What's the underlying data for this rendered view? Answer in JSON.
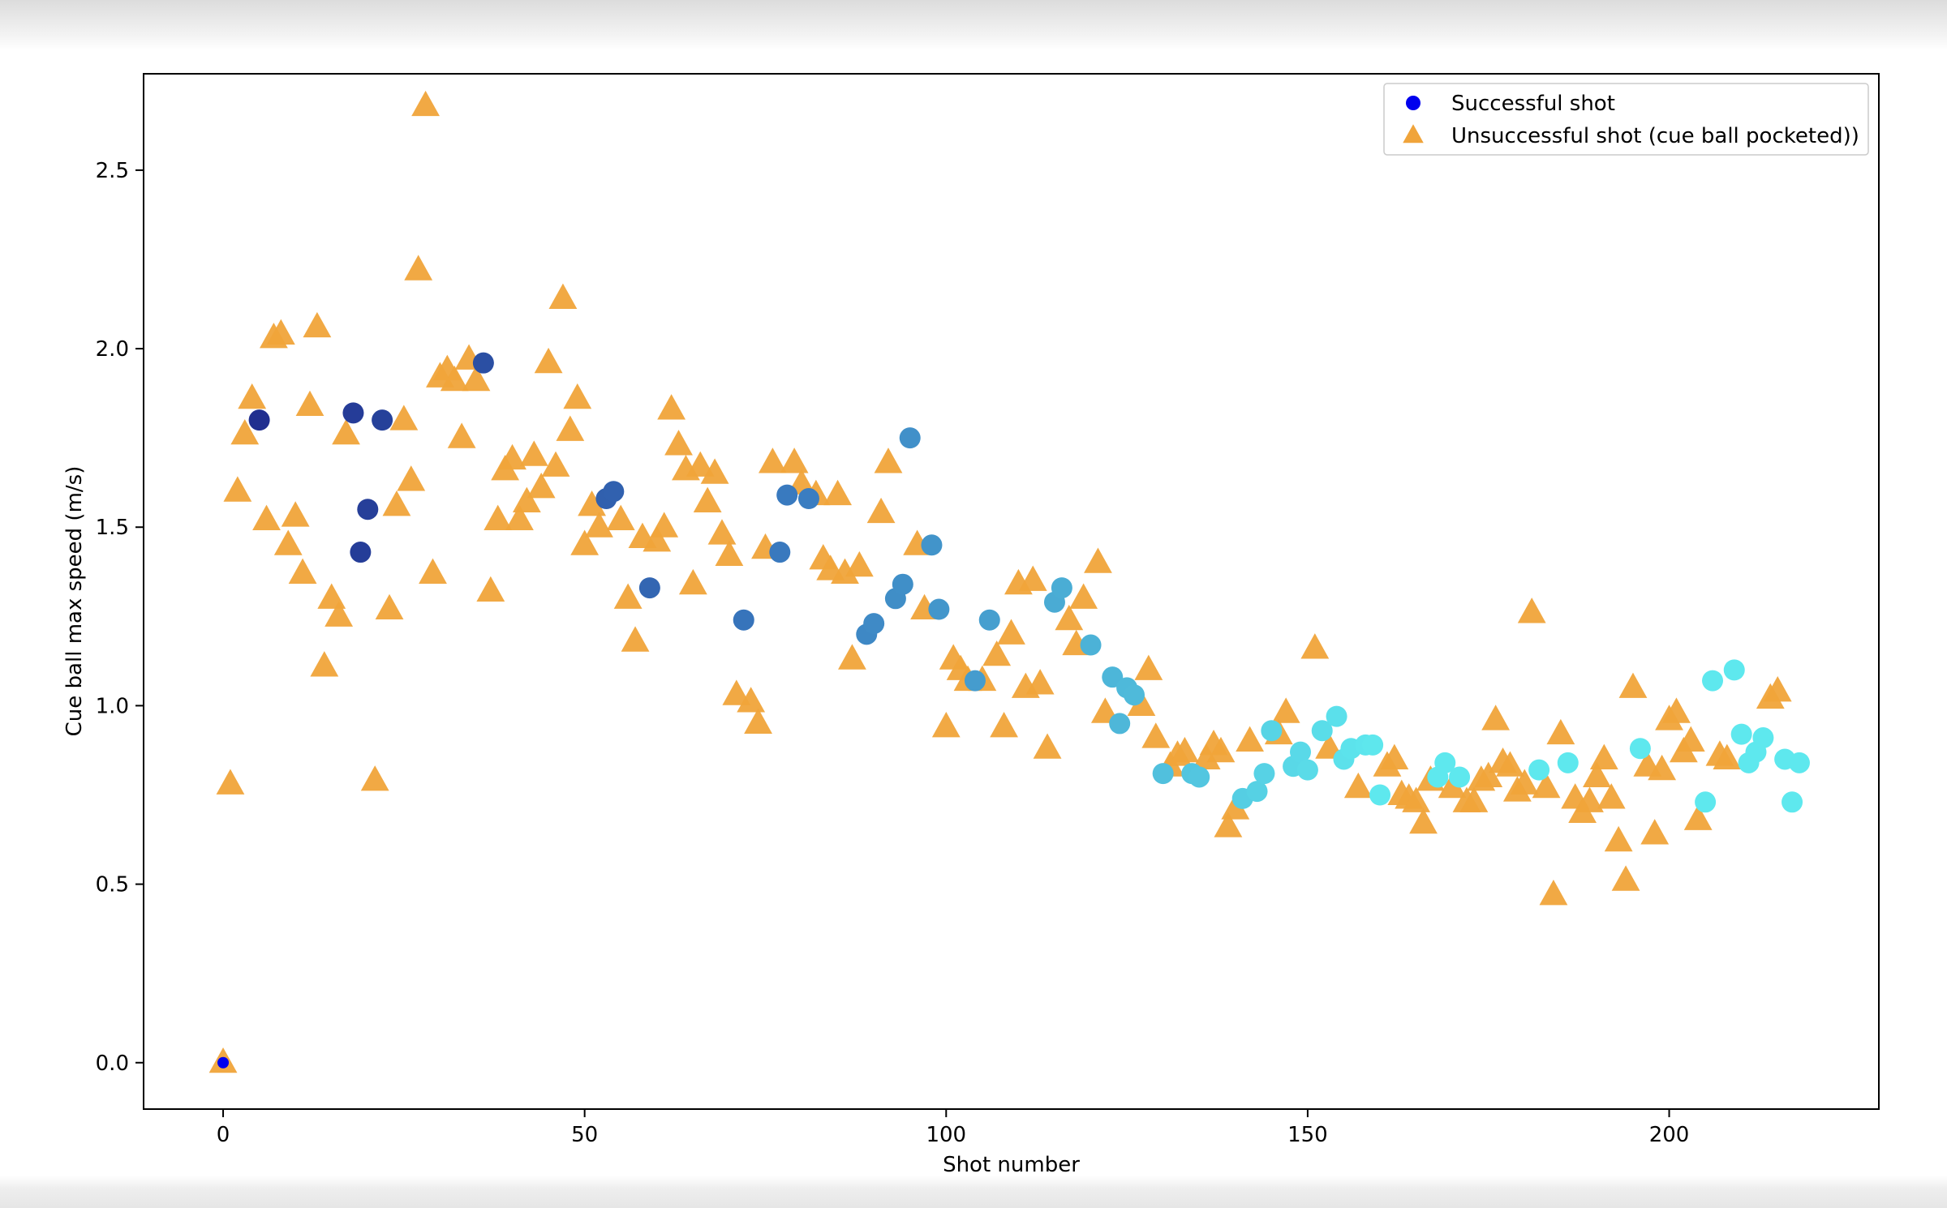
{
  "chart_data": {
    "type": "scatter",
    "title": "",
    "xlabel": "Shot number",
    "ylabel": "Cue ball max speed (m/s)",
    "xlim": [
      -11,
      229
    ],
    "ylim": [
      -0.13,
      2.77
    ],
    "x_ticks": [
      "0",
      "50",
      "100",
      "150",
      "200"
    ],
    "y_ticks": [
      "0.0",
      "0.5",
      "1.0",
      "1.5",
      "2.0",
      "2.5"
    ],
    "legend_position": "top-right",
    "colors": {
      "unsuccessful": "#f0a43a",
      "successful_legend": "#0000ee",
      "successful_gradient": [
        "#1f2a8c",
        "#3a7cc0",
        "#5ee8ee"
      ]
    },
    "series": [
      {
        "name": "Successful shot",
        "marker": "circle",
        "points": [
          [
            0,
            0.0
          ],
          [
            5,
            1.8
          ],
          [
            18,
            1.82
          ],
          [
            19,
            1.43
          ],
          [
            20,
            1.55
          ],
          [
            22,
            1.8
          ],
          [
            36,
            1.96
          ],
          [
            53,
            1.58
          ],
          [
            54,
            1.6
          ],
          [
            59,
            1.33
          ],
          [
            72,
            1.24
          ],
          [
            77,
            1.43
          ],
          [
            78,
            1.59
          ],
          [
            81,
            1.58
          ],
          [
            89,
            1.2
          ],
          [
            90,
            1.23
          ],
          [
            93,
            1.3
          ],
          [
            94,
            1.34
          ],
          [
            95,
            1.75
          ],
          [
            98,
            1.45
          ],
          [
            99,
            1.27
          ],
          [
            104,
            1.07
          ],
          [
            106,
            1.24
          ],
          [
            115,
            1.29
          ],
          [
            116,
            1.33
          ],
          [
            120,
            1.17
          ],
          [
            123,
            1.08
          ],
          [
            124,
            0.95
          ],
          [
            125,
            1.05
          ],
          [
            126,
            1.03
          ],
          [
            130,
            0.81
          ],
          [
            134,
            0.81
          ],
          [
            135,
            0.8
          ],
          [
            141,
            0.74
          ],
          [
            143,
            0.76
          ],
          [
            144,
            0.81
          ],
          [
            145,
            0.93
          ],
          [
            148,
            0.83
          ],
          [
            149,
            0.87
          ],
          [
            150,
            0.82
          ],
          [
            152,
            0.93
          ],
          [
            154,
            0.97
          ],
          [
            155,
            0.85
          ],
          [
            156,
            0.88
          ],
          [
            158,
            0.89
          ],
          [
            159,
            0.89
          ],
          [
            160,
            0.75
          ],
          [
            168,
            0.8
          ],
          [
            169,
            0.84
          ],
          [
            171,
            0.8
          ],
          [
            182,
            0.82
          ],
          [
            186,
            0.84
          ],
          [
            196,
            0.88
          ],
          [
            205,
            0.73
          ],
          [
            206,
            1.07
          ],
          [
            209,
            1.1
          ],
          [
            210,
            0.92
          ],
          [
            211,
            0.84
          ],
          [
            212,
            0.87
          ],
          [
            213,
            0.91
          ],
          [
            216,
            0.85
          ],
          [
            217,
            0.73
          ],
          [
            218,
            0.84
          ]
        ]
      },
      {
        "name": "Unsuccessful shot (cue ball pocketed))",
        "marker": "triangle",
        "points": [
          [
            0,
            0.0
          ],
          [
            1,
            0.78
          ],
          [
            2,
            1.6
          ],
          [
            3,
            1.76
          ],
          [
            4,
            1.86
          ],
          [
            6,
            1.52
          ],
          [
            7,
            2.03
          ],
          [
            8,
            2.04
          ],
          [
            9,
            1.45
          ],
          [
            10,
            1.53
          ],
          [
            11,
            1.37
          ],
          [
            12,
            1.84
          ],
          [
            13,
            2.06
          ],
          [
            14,
            1.11
          ],
          [
            15,
            1.3
          ],
          [
            16,
            1.25
          ],
          [
            17,
            1.76
          ],
          [
            21,
            0.79
          ],
          [
            23,
            1.27
          ],
          [
            24,
            1.56
          ],
          [
            25,
            1.8
          ],
          [
            26,
            1.63
          ],
          [
            27,
            2.22
          ],
          [
            28,
            2.68
          ],
          [
            29,
            1.37
          ],
          [
            30,
            1.92
          ],
          [
            31,
            1.94
          ],
          [
            32,
            1.91
          ],
          [
            33,
            1.75
          ],
          [
            34,
            1.97
          ],
          [
            35,
            1.91
          ],
          [
            37,
            1.32
          ],
          [
            38,
            1.52
          ],
          [
            39,
            1.66
          ],
          [
            40,
            1.69
          ],
          [
            41,
            1.52
          ],
          [
            42,
            1.57
          ],
          [
            43,
            1.7
          ],
          [
            44,
            1.61
          ],
          [
            45,
            1.96
          ],
          [
            46,
            1.67
          ],
          [
            47,
            2.14
          ],
          [
            48,
            1.77
          ],
          [
            49,
            1.86
          ],
          [
            50,
            1.45
          ],
          [
            51,
            1.56
          ],
          [
            52,
            1.5
          ],
          [
            55,
            1.52
          ],
          [
            56,
            1.3
          ],
          [
            57,
            1.18
          ],
          [
            58,
            1.47
          ],
          [
            60,
            1.46
          ],
          [
            61,
            1.5
          ],
          [
            62,
            1.83
          ],
          [
            63,
            1.73
          ],
          [
            64,
            1.66
          ],
          [
            65,
            1.34
          ],
          [
            66,
            1.67
          ],
          [
            67,
            1.57
          ],
          [
            68,
            1.65
          ],
          [
            69,
            1.48
          ],
          [
            70,
            1.42
          ],
          [
            71,
            1.03
          ],
          [
            73,
            1.01
          ],
          [
            74,
            0.95
          ],
          [
            75,
            1.44
          ],
          [
            76,
            1.68
          ],
          [
            79,
            1.68
          ],
          [
            80,
            1.62
          ],
          [
            82,
            1.59
          ],
          [
            83,
            1.41
          ],
          [
            84,
            1.38
          ],
          [
            85,
            1.59
          ],
          [
            86,
            1.37
          ],
          [
            87,
            1.13
          ],
          [
            88,
            1.39
          ],
          [
            91,
            1.54
          ],
          [
            92,
            1.68
          ],
          [
            96,
            1.45
          ],
          [
            97,
            1.27
          ],
          [
            100,
            0.94
          ],
          [
            101,
            1.13
          ],
          [
            102,
            1.1
          ],
          [
            103,
            1.07
          ],
          [
            105,
            1.07
          ],
          [
            107,
            1.14
          ],
          [
            108,
            0.94
          ],
          [
            109,
            1.2
          ],
          [
            110,
            1.34
          ],
          [
            111,
            1.05
          ],
          [
            112,
            1.35
          ],
          [
            113,
            1.06
          ],
          [
            114,
            0.88
          ],
          [
            117,
            1.24
          ],
          [
            118,
            1.17
          ],
          [
            119,
            1.3
          ],
          [
            121,
            1.4
          ],
          [
            122,
            0.98
          ],
          [
            127,
            1.0
          ],
          [
            128,
            1.1
          ],
          [
            129,
            0.91
          ],
          [
            131,
            0.83
          ],
          [
            132,
            0.86
          ],
          [
            133,
            0.87
          ],
          [
            136,
            0.85
          ],
          [
            137,
            0.89
          ],
          [
            138,
            0.87
          ],
          [
            139,
            0.66
          ],
          [
            140,
            0.71
          ],
          [
            142,
            0.9
          ],
          [
            146,
            0.92
          ],
          [
            147,
            0.98
          ],
          [
            151,
            1.16
          ],
          [
            153,
            0.88
          ],
          [
            157,
            0.77
          ],
          [
            161,
            0.83
          ],
          [
            162,
            0.85
          ],
          [
            163,
            0.75
          ],
          [
            164,
            0.74
          ],
          [
            165,
            0.73
          ],
          [
            166,
            0.67
          ],
          [
            167,
            0.79
          ],
          [
            170,
            0.77
          ],
          [
            172,
            0.73
          ],
          [
            173,
            0.73
          ],
          [
            174,
            0.79
          ],
          [
            175,
            0.8
          ],
          [
            176,
            0.96
          ],
          [
            177,
            0.84
          ],
          [
            178,
            0.83
          ],
          [
            179,
            0.76
          ],
          [
            180,
            0.78
          ],
          [
            181,
            1.26
          ],
          [
            183,
            0.77
          ],
          [
            184,
            0.47
          ],
          [
            185,
            0.92
          ],
          [
            187,
            0.74
          ],
          [
            188,
            0.7
          ],
          [
            189,
            0.73
          ],
          [
            190,
            0.8
          ],
          [
            191,
            0.85
          ],
          [
            192,
            0.74
          ],
          [
            193,
            0.62
          ],
          [
            194,
            0.51
          ],
          [
            195,
            1.05
          ],
          [
            197,
            0.83
          ],
          [
            198,
            0.64
          ],
          [
            199,
            0.82
          ],
          [
            200,
            0.96
          ],
          [
            201,
            0.98
          ],
          [
            202,
            0.87
          ],
          [
            203,
            0.9
          ],
          [
            204,
            0.68
          ],
          [
            207,
            0.86
          ],
          [
            208,
            0.85
          ],
          [
            214,
            1.02
          ],
          [
            215,
            1.04
          ]
        ]
      }
    ]
  }
}
